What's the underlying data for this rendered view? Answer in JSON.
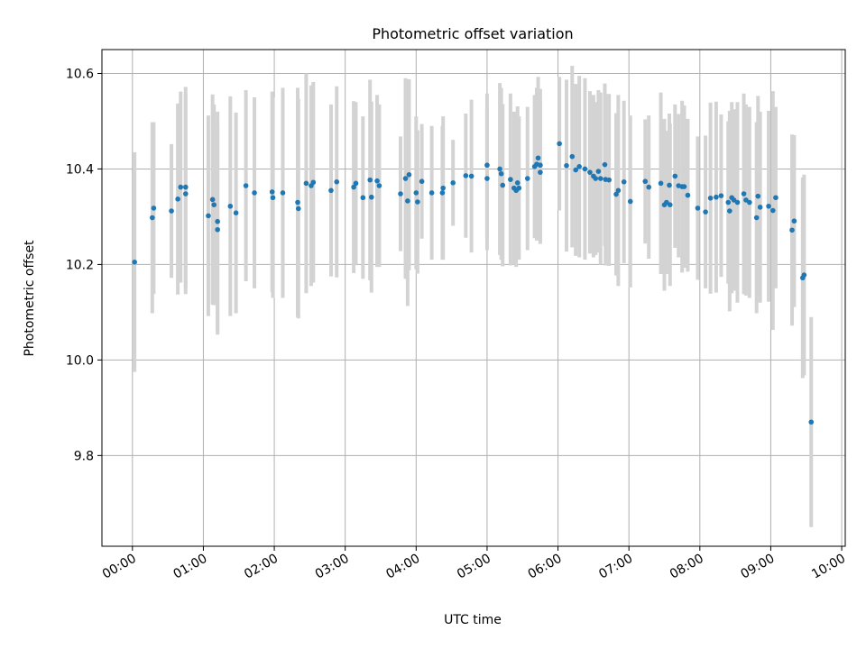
{
  "chart_data": {
    "type": "scatter",
    "title": "Photometric offset variation",
    "xlabel": "UTC time",
    "ylabel": "Photometric offset",
    "x_unit": "hours",
    "xlim": [
      -0.43,
      10.05
    ],
    "ylim": [
      9.61,
      10.65
    ],
    "xticks": [
      {
        "value": 0,
        "label": "00:00"
      },
      {
        "value": 1,
        "label": "01:00"
      },
      {
        "value": 2,
        "label": "02:00"
      },
      {
        "value": 3,
        "label": "03:00"
      },
      {
        "value": 4,
        "label": "04:00"
      },
      {
        "value": 5,
        "label": "05:00"
      },
      {
        "value": 6,
        "label": "06:00"
      },
      {
        "value": 7,
        "label": "07:00"
      },
      {
        "value": 8,
        "label": "08:00"
      },
      {
        "value": 9,
        "label": "09:00"
      },
      {
        "value": 10,
        "label": "10:00"
      }
    ],
    "yticks": [
      {
        "value": 9.8,
        "label": "9.8"
      },
      {
        "value": 10.0,
        "label": "10.0"
      },
      {
        "value": 10.2,
        "label": "10.2"
      },
      {
        "value": 10.4,
        "label": "10.4"
      },
      {
        "value": 10.6,
        "label": "10.6"
      }
    ],
    "grid": true,
    "point_color": "#1f77b4",
    "errorbar_color": "#d3d3d3",
    "series": [
      {
        "name": "offset",
        "x": [
          0.03,
          0.28,
          0.3,
          0.55,
          0.64,
          0.68,
          0.75,
          0.75,
          1.07,
          1.13,
          1.15,
          1.2,
          1.2,
          1.38,
          1.46,
          1.6,
          1.72,
          1.97,
          1.98,
          2.12,
          2.33,
          2.34,
          2.45,
          2.52,
          2.55,
          2.8,
          2.88,
          3.12,
          3.15,
          3.25,
          3.35,
          3.37,
          3.45,
          3.48,
          3.78,
          3.85,
          3.88,
          3.9,
          4.0,
          4.02,
          4.08,
          4.22,
          4.37,
          4.38,
          4.52,
          4.7,
          4.78,
          5.0,
          5.0,
          5.18,
          5.2,
          5.22,
          5.33,
          5.38,
          5.41,
          5.43,
          5.45,
          5.57,
          5.67,
          5.7,
          5.72,
          5.75,
          5.75,
          6.02,
          6.12,
          6.2,
          6.25,
          6.3,
          6.38,
          6.45,
          6.5,
          6.53,
          6.57,
          6.6,
          6.66,
          6.67,
          6.72,
          6.82,
          6.85,
          6.93,
          7.02,
          7.23,
          7.28,
          7.45,
          7.5,
          7.53,
          7.57,
          7.58,
          7.65,
          7.7,
          7.75,
          7.78,
          7.83,
          7.97,
          8.08,
          8.15,
          8.23,
          8.3,
          8.4,
          8.42,
          8.45,
          8.48,
          8.53,
          8.62,
          8.65,
          8.7,
          8.8,
          8.82,
          8.85,
          8.97,
          9.03,
          9.07,
          9.3,
          9.33,
          9.45,
          9.47,
          9.57
        ],
        "y": [
          10.205,
          10.298,
          10.318,
          10.312,
          10.337,
          10.362,
          10.348,
          10.362,
          10.302,
          10.336,
          10.325,
          10.29,
          10.273,
          10.322,
          10.308,
          10.365,
          10.35,
          10.352,
          10.34,
          10.35,
          10.33,
          10.317,
          10.37,
          10.365,
          10.372,
          10.355,
          10.373,
          10.362,
          10.37,
          10.34,
          10.377,
          10.341,
          10.375,
          10.365,
          10.348,
          10.38,
          10.333,
          10.388,
          10.35,
          10.331,
          10.374,
          10.35,
          10.35,
          10.36,
          10.371,
          10.386,
          10.385,
          10.408,
          10.38,
          10.4,
          10.39,
          10.366,
          10.378,
          10.36,
          10.355,
          10.371,
          10.36,
          10.38,
          10.405,
          10.41,
          10.423,
          10.393,
          10.408,
          10.453,
          10.407,
          10.426,
          10.398,
          10.405,
          10.4,
          10.393,
          10.385,
          10.38,
          10.395,
          10.38,
          10.409,
          10.378,
          10.377,
          10.347,
          10.355,
          10.373,
          10.332,
          10.374,
          10.362,
          10.37,
          10.325,
          10.33,
          10.366,
          10.325,
          10.385,
          10.365,
          10.363,
          10.363,
          10.345,
          10.318,
          10.31,
          10.339,
          10.341,
          10.344,
          10.33,
          10.312,
          10.34,
          10.335,
          10.33,
          10.348,
          10.335,
          10.33,
          10.298,
          10.343,
          10.32,
          10.322,
          10.313,
          10.34,
          10.272,
          10.291,
          10.172,
          10.178,
          9.87
        ],
        "err": [
          0.23,
          0.2,
          0.18,
          0.14,
          0.2,
          0.2,
          0.21,
          0.21,
          0.21,
          0.22,
          0.21,
          0.23,
          0.22,
          0.23,
          0.21,
          0.2,
          0.2,
          0.21,
          0.21,
          0.22,
          0.24,
          0.23,
          0.23,
          0.21,
          0.21,
          0.18,
          0.2,
          0.18,
          0.17,
          0.17,
          0.21,
          0.2,
          0.18,
          0.17,
          0.12,
          0.21,
          0.22,
          0.2,
          0.16,
          0.15,
          0.12,
          0.14,
          0.14,
          0.15,
          0.09,
          0.13,
          0.16,
          0.15,
          0.15,
          0.18,
          0.18,
          0.17,
          0.18,
          0.16,
          0.16,
          0.16,
          0.15,
          0.15,
          0.15,
          0.16,
          0.17,
          0.15,
          0.16,
          0.14,
          0.18,
          0.19,
          0.18,
          0.19,
          0.19,
          0.17,
          0.17,
          0.16,
          0.17,
          0.18,
          0.17,
          0.18,
          0.18,
          0.17,
          0.2,
          0.17,
          0.18,
          0.13,
          0.15,
          0.19,
          0.18,
          0.15,
          0.15,
          0.17,
          0.15,
          0.15,
          0.18,
          0.17,
          0.16,
          0.15,
          0.16,
          0.2,
          0.2,
          0.17,
          0.17,
          0.21,
          0.2,
          0.19,
          0.21,
          0.21,
          0.2,
          0.2,
          0.2,
          0.21,
          0.2,
          0.2,
          0.25,
          0.19,
          0.2,
          0.18,
          0.21,
          0.21,
          0.22
        ]
      }
    ]
  }
}
